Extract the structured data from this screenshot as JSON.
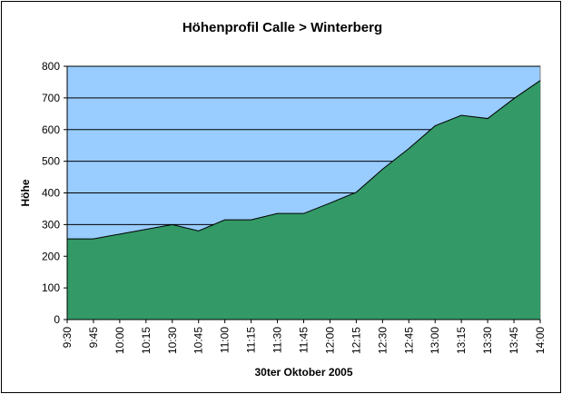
{
  "chart_data": {
    "type": "area",
    "title": "Höhenprofil Calle > Winterberg",
    "xlabel": "30ter Oktober 2005",
    "ylabel": "Höhe",
    "categories": [
      "9:30",
      "9:45",
      "10:00",
      "10:15",
      "10:30",
      "10:45",
      "11:00",
      "11:15",
      "11:30",
      "11:45",
      "12:00",
      "12:15",
      "12:30",
      "12:45",
      "13:00",
      "13:15",
      "13:30",
      "13:45",
      "14:00"
    ],
    "series": [
      {
        "values": [
          255,
          255,
          270,
          285,
          300,
          280,
          315,
          315,
          335,
          335,
          368,
          402,
          475,
          540,
          612,
          645,
          635,
          698,
          755
        ]
      }
    ],
    "ylim": [
      0,
      800
    ],
    "yticks": [
      0,
      100,
      200,
      300,
      400,
      500,
      600,
      700,
      800
    ],
    "grid": "horizontal",
    "legend": "none",
    "colors": {
      "plot_background": "#99ccff",
      "area_fill": "#339966",
      "line": "#000000",
      "grid": "#000000"
    }
  }
}
